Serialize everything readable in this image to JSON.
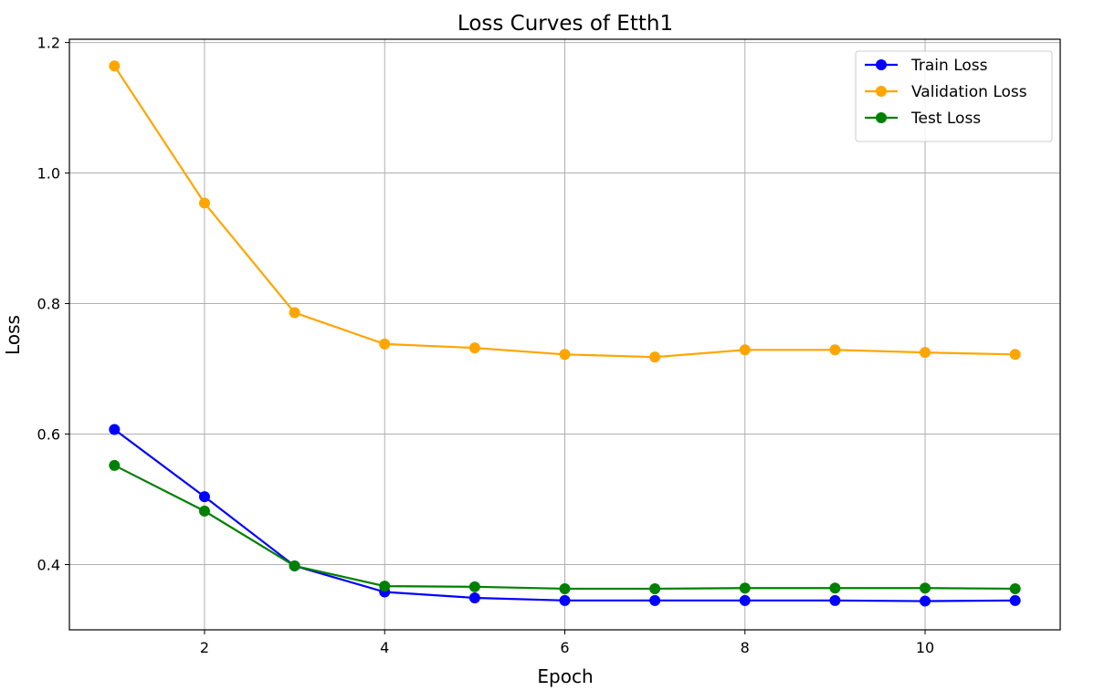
{
  "chart_data": {
    "type": "line",
    "title": "Loss Curves of Etth1",
    "xlabel": "Epoch",
    "ylabel": "Loss",
    "x": [
      1,
      2,
      3,
      4,
      5,
      6,
      7,
      8,
      9,
      10,
      11
    ],
    "xlim": [
      0.5,
      11.5
    ],
    "ylim": [
      0.3,
      1.205
    ],
    "xticks": [
      2,
      4,
      6,
      8,
      10
    ],
    "xtick_labels": [
      "2",
      "4",
      "6",
      "8",
      "10"
    ],
    "yticks": [
      0.4,
      0.6,
      0.8,
      1.0,
      1.2
    ],
    "ytick_labels": [
      "0.4",
      "0.6",
      "0.8",
      "1.0",
      "1.2"
    ],
    "grid": true,
    "legend_position": "top-right",
    "series": [
      {
        "name": "Train Loss",
        "color": "#0000ff",
        "marker": "circle",
        "values": [
          0.607,
          0.504,
          0.398,
          0.358,
          0.349,
          0.345,
          0.345,
          0.345,
          0.345,
          0.344,
          0.345
        ]
      },
      {
        "name": "Validation Loss",
        "color": "#ffa500",
        "marker": "circle",
        "values": [
          1.164,
          0.954,
          0.786,
          0.738,
          0.732,
          0.722,
          0.718,
          0.729,
          0.729,
          0.725,
          0.722
        ]
      },
      {
        "name": "Test Loss",
        "color": "#008000",
        "marker": "circle",
        "values": [
          0.552,
          0.482,
          0.398,
          0.367,
          0.366,
          0.363,
          0.363,
          0.364,
          0.364,
          0.364,
          0.363
        ]
      }
    ]
  }
}
